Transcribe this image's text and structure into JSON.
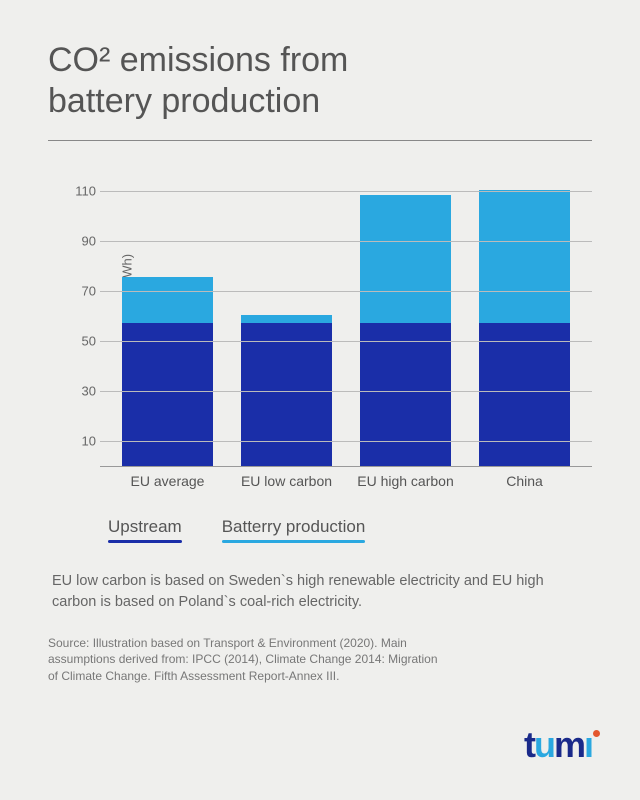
{
  "title": "CO²  emissions from\nbattery production",
  "chart": {
    "type": "stacked-bar",
    "ylabel": "CO2 emissions (kg CO2/kWh)",
    "ylim": [
      0,
      110
    ],
    "yticks": [
      10,
      30,
      50,
      70,
      90,
      110
    ],
    "grid_color": "#bbbbbb",
    "axis_color": "#999999",
    "background_color": "#efefed",
    "label_fontsize": 13,
    "categories": [
      "EU average",
      "EU low carbon",
      "EU high carbon",
      "China"
    ],
    "series": [
      {
        "key": "upstream",
        "label": "Upstream",
        "color": "#1a2ea8"
      },
      {
        "key": "battery",
        "label": "Batterry production",
        "color": "#2aa8e0"
      }
    ],
    "data": {
      "upstream": [
        57,
        57,
        57,
        57
      ],
      "battery": [
        18,
        3,
        51,
        53
      ]
    },
    "bar_width": 0.76
  },
  "note": "EU low carbon is based on Sweden`s high renewable electricity and EU high carbon is based on Poland`s coal-rich electricity.",
  "source": "Source:  Illustration based on Transport & Environment (2020). Main assumptions derived from: IPCC (2014), Climate Change 2014: Migration of Climate Change. Fifth Assessment Report-Annex III.",
  "logo": {
    "text": "tumi",
    "colors": {
      "t": "#1a2a8a",
      "u": "#2aa8e0",
      "m": "#1a2a8a",
      "i": "#2aa8e0",
      "dot": "#e4572e"
    }
  }
}
